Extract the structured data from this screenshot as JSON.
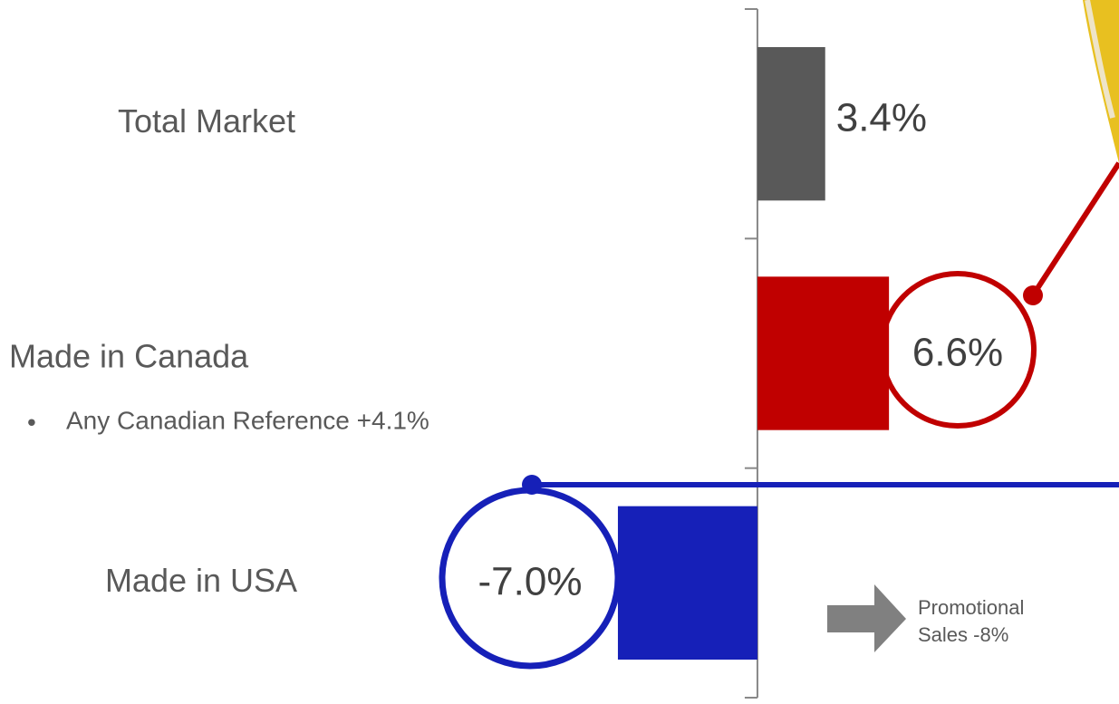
{
  "chart_data": {
    "type": "bar",
    "orientation": "horizontal",
    "categories": [
      "Total Market",
      "Made in Canada",
      "Made in USA"
    ],
    "values": [
      3.4,
      6.6,
      -7.0
    ],
    "value_labels": [
      "3.4%",
      "6.6%",
      "-7.0%"
    ],
    "colors": [
      "#595959",
      "#c00000",
      "#1620b8"
    ],
    "xlim": [
      -38,
      18.14
    ],
    "annotations": [
      "Any Canadian Reference  +4.1%",
      "Promotional",
      "Sales -8%"
    ]
  }
}
